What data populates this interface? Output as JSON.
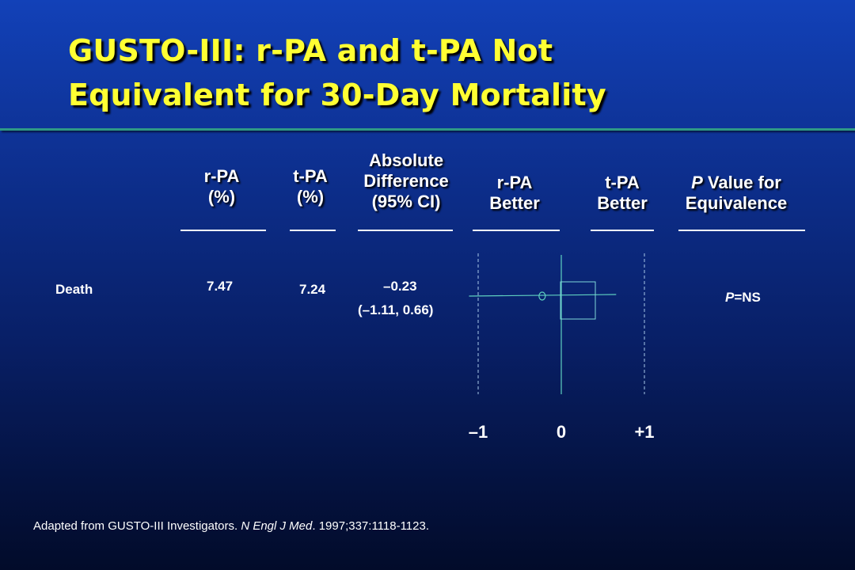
{
  "title": {
    "line1": "GUSTO-III: r-PA and t-PA Not",
    "line2": "Equivalent for 30-Day Mortality"
  },
  "headers": {
    "rpa": [
      "r-PA",
      "(%)"
    ],
    "tpa": [
      "t-PA",
      "(%)"
    ],
    "diff": [
      "Absolute",
      "Difference",
      "(95% CI)"
    ],
    "rpa_better": [
      "r-PA",
      "Better"
    ],
    "tpa_better": [
      "t-PA",
      "Better"
    ],
    "p_italic": "P",
    "p_rest": " Value for",
    "p_line2": "Equivalence"
  },
  "row": {
    "label": "Death",
    "rpa": "7.47",
    "tpa": "7.24",
    "diff": "–0.23",
    "ci": "(–1.11, 0.66)",
    "p_italic": "P",
    "p_rest": "=NS"
  },
  "footnote": {
    "prefix": "Adapted from GUSTO-III Investigators. ",
    "journal": "N Engl J Med",
    "suffix": ". 1997;337:1118-1123."
  },
  "chart_data": {
    "type": "scatter",
    "xlim": [
      -1,
      1
    ],
    "ticks": [
      {
        "value": -1,
        "label": "–1"
      },
      {
        "value": 0,
        "label": "0"
      },
      {
        "value": 1,
        "label": "+1"
      }
    ],
    "point": {
      "estimate": -0.23,
      "ci_low": -1.11,
      "ci_high": 0.66
    },
    "colors": {
      "line": "#5fd0c0",
      "dashed": "#a8c8e8",
      "box": "#7fd8d8"
    }
  }
}
